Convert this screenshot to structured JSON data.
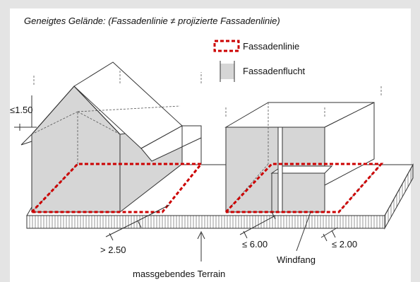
{
  "title": "Geneigtes Gelände: (Fassadenlinie ≠ projizierte Fassadenlinie)",
  "legend": [
    {
      "label": "Fassadenlinie"
    },
    {
      "label": "Fassadenflucht"
    }
  ],
  "dimensions": {
    "gable_offset": "≤1.50",
    "left_distance": "> 2.50",
    "right_distance": "≤ 6.00",
    "windfang_depth": "≤ 2.00"
  },
  "labels": {
    "windfang": "Windfang",
    "terrain": "massgebendes Terrain"
  }
}
